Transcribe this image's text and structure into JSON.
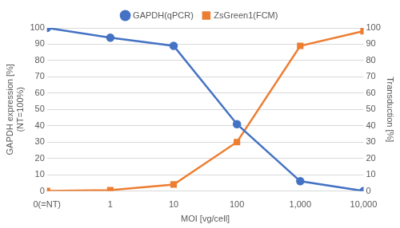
{
  "chart_data": {
    "type": "line",
    "x_label": "MOI [vg/cell]",
    "y_label": [
      "GAPDH expression [%]",
      "(NT=100%)"
    ],
    "y2_label": "Transduction [%]",
    "categories": [
      "0(=NT)",
      "1",
      "10",
      "100",
      "1,000",
      "10,000"
    ],
    "series": [
      {
        "name": "GAPDH(qPCR)",
        "color": "#4472c4",
        "marker": "circle",
        "values": [
          100,
          94,
          89,
          41,
          6,
          0
        ]
      },
      {
        "name": "ZsGreen1(FCM)",
        "color": "#ed7d31",
        "marker": "square",
        "axis": "y2",
        "values": [
          0,
          0.5,
          4,
          30,
          89,
          98
        ]
      }
    ],
    "ylim": [
      0,
      100
    ],
    "yticks": [
      0,
      10,
      20,
      30,
      40,
      50,
      60,
      70,
      80,
      90,
      100
    ],
    "y2lim": [
      0,
      100
    ],
    "y2ticks": [
      0,
      10,
      20,
      30,
      40,
      50,
      60,
      70,
      80,
      90,
      100
    ],
    "grid": true,
    "legend": "top"
  }
}
